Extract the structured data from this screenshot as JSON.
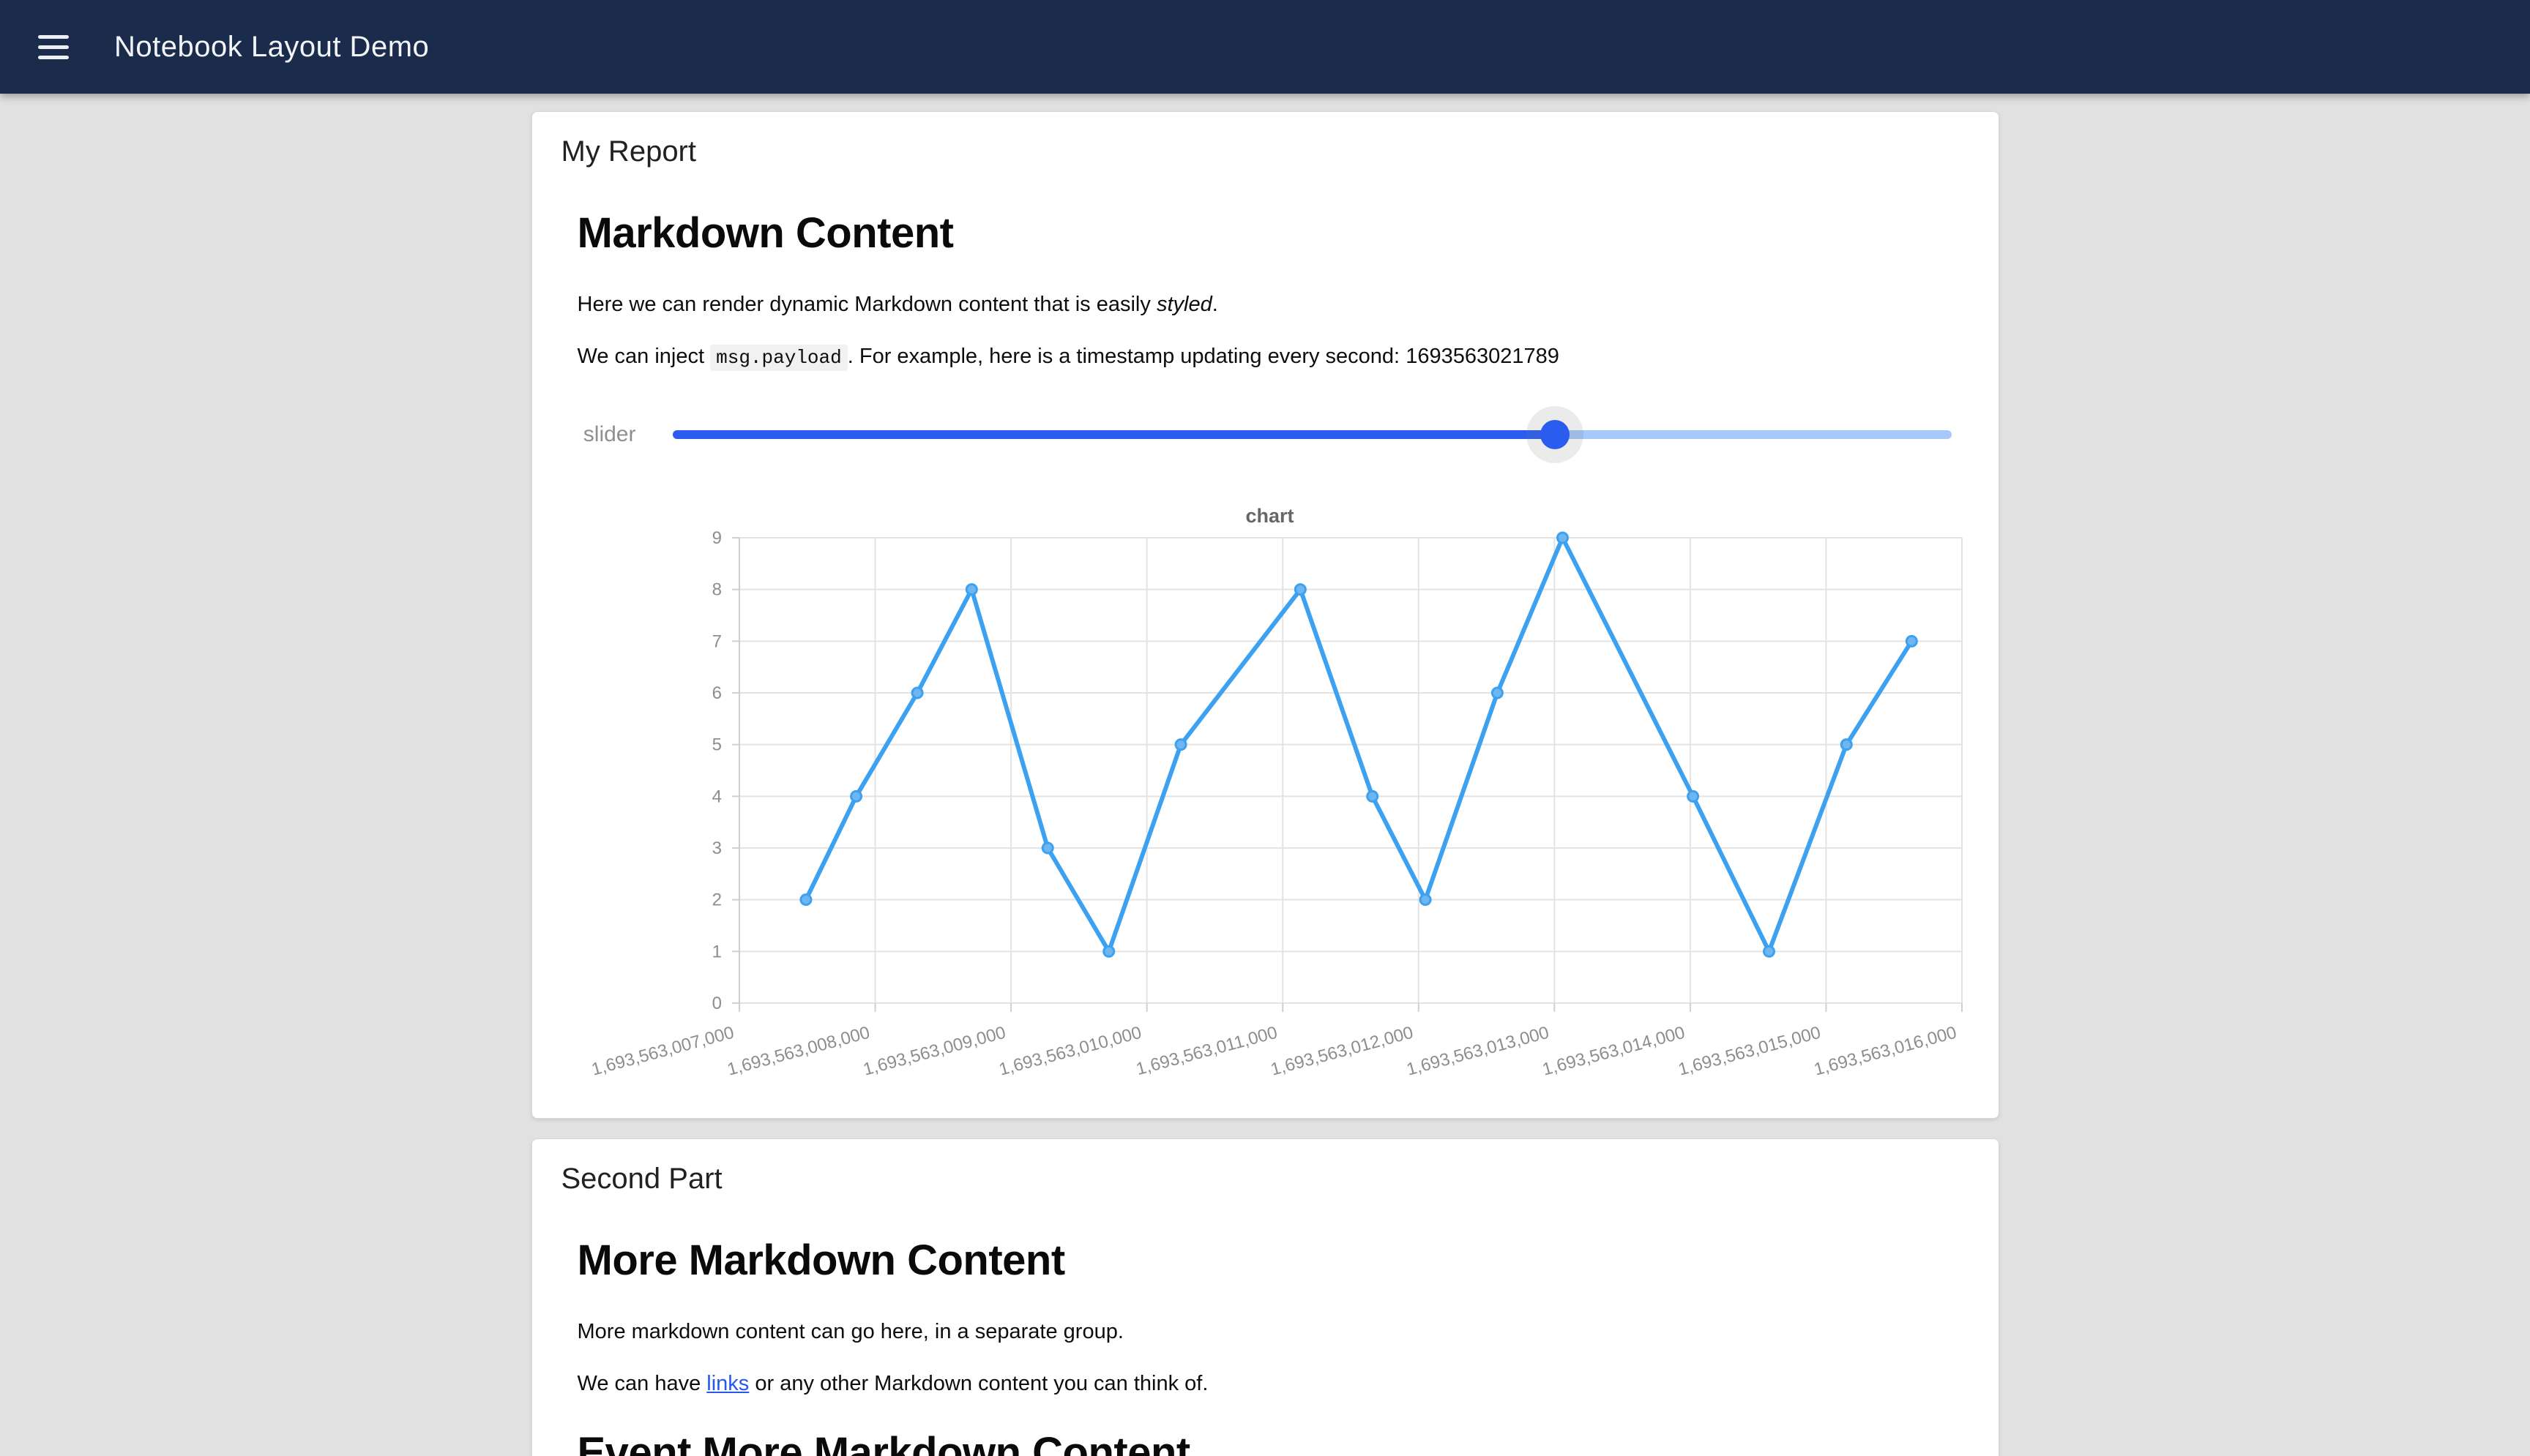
{
  "header": {
    "title": "Notebook Layout Demo"
  },
  "theme": {
    "header_bg": "#1b2b4b",
    "page_bg": "#e1e1e1",
    "accent_blue": "#2b5cf0",
    "slider_track_rest": "#a6c8fa",
    "link_color": "#2657ee"
  },
  "report_card": {
    "title": "My Report",
    "heading": "Markdown Content",
    "para1": [
      {
        "text": "Here we can render dynamic Markdown content that is easily "
      },
      {
        "text": "styled",
        "style": "italic"
      },
      {
        "text": "."
      }
    ],
    "para2": [
      {
        "text": "We can inject "
      },
      {
        "text": "msg.payload",
        "style": "code"
      },
      {
        "text": ". For example, here is a timestamp updating every second: "
      },
      {
        "text": "1693563021789"
      }
    ],
    "slider": {
      "label": "slider",
      "value_percent": 69
    }
  },
  "chart_data": {
    "type": "line",
    "title": "chart",
    "xlabel": "",
    "ylabel": "",
    "xlim": [
      1693563007000,
      1693563016000
    ],
    "ylim": [
      0,
      9
    ],
    "grid": true,
    "legend": false,
    "y_ticks": [
      0,
      1,
      2,
      3,
      4,
      5,
      6,
      7,
      8,
      9
    ],
    "x_ticks": [
      {
        "ms": 1693563007000,
        "label": "1,693,563,007,000"
      },
      {
        "ms": 1693563008000,
        "label": "1,693,563,008,000"
      },
      {
        "ms": 1693563009000,
        "label": "1,693,563,009,000"
      },
      {
        "ms": 1693563010000,
        "label": "1,693,563,010,000"
      },
      {
        "ms": 1693563011000,
        "label": "1,693,563,011,000"
      },
      {
        "ms": 1693563012000,
        "label": "1,693,563,012,000"
      },
      {
        "ms": 1693563013000,
        "label": "1,693,563,013,000"
      },
      {
        "ms": 1693563014000,
        "label": "1,693,563,014,000"
      },
      {
        "ms": 1693563015000,
        "label": "1,693,563,015,000"
      },
      {
        "ms": 1693563016000,
        "label": "1,693,563,016,000"
      }
    ],
    "series": [
      {
        "name": "chart",
        "color": "#3da1f1",
        "point_fill": "#6fb5ef",
        "points": [
          [
            1693563007490,
            2
          ],
          [
            1693563007860,
            4
          ],
          [
            1693563008310,
            6
          ],
          [
            1693563008710,
            8
          ],
          [
            1693563009270,
            3
          ],
          [
            1693563009720,
            1
          ],
          [
            1693563010250,
            5
          ],
          [
            1693563011130,
            8
          ],
          [
            1693563011660,
            4
          ],
          [
            1693563012050,
            2
          ],
          [
            1693563012580,
            6
          ],
          [
            1693563013060,
            9
          ],
          [
            1693563014020,
            4
          ],
          [
            1693563014580,
            1
          ],
          [
            1693563015150,
            5
          ],
          [
            1693563015630,
            7
          ]
        ]
      }
    ],
    "style": {
      "grid_color": "#e3e3e3",
      "axis_color": "#cfcfcf",
      "tick_label_color": "#8d8d8d",
      "title_color": "#666666"
    }
  },
  "second_card": {
    "title": "Second Part",
    "heading1": "More Markdown Content",
    "para1": "More markdown content can go here, in a separate group.",
    "para2": [
      {
        "text": "We can have "
      },
      {
        "text": "links",
        "style": "link"
      },
      {
        "text": " or any other Markdown content you can think of."
      }
    ],
    "heading2": "Event More Markdown Content"
  }
}
